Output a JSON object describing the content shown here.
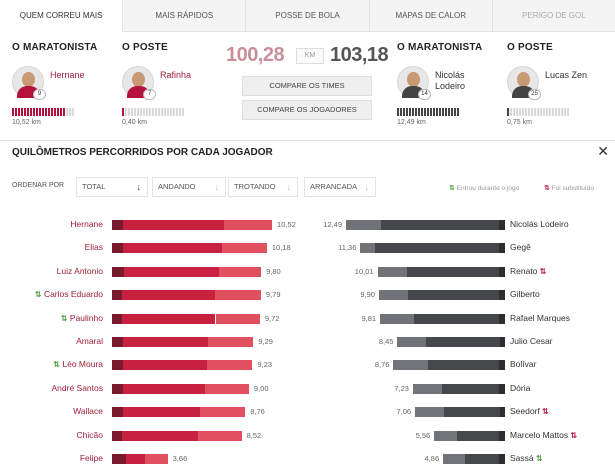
{
  "tabs": [
    {
      "label": "QUEM CORREU MAIS",
      "state": "active"
    },
    {
      "label": "MAIS RÁPIDOS",
      "state": "normal"
    },
    {
      "label": "POSSE DE BOLA",
      "state": "normal"
    },
    {
      "label": "MAPAS DE CALOR",
      "state": "normal"
    },
    {
      "label": "PERIGO DE GOL",
      "state": "disabled"
    }
  ],
  "header": {
    "left": [
      {
        "title": "O MARATONISTA",
        "name": [
          "Hernane"
        ],
        "number": "9",
        "km": "10,52 km",
        "fill": 0.88,
        "shirt": "#b4123b",
        "team": "red"
      },
      {
        "title": "O POSTE",
        "name": [
          "Rafinha"
        ],
        "number": "7",
        "km": "0,40 km",
        "fill": 0.04,
        "shirt": "#b4123b",
        "team": "red"
      }
    ],
    "right": [
      {
        "title": "O MARATONISTA",
        "name": [
          "Nicolás",
          "Lodeiro"
        ],
        "number": "14",
        "km": "12,49 km",
        "fill": 1.0,
        "shirt": "#444444",
        "team": "dark"
      },
      {
        "title": "O POSTE",
        "name": [
          "Lucas Zen"
        ],
        "number": "25",
        "km": "0,75 km",
        "fill": 0.06,
        "shirt": "#444444",
        "team": "dark"
      }
    ],
    "total_left": "100,28",
    "total_right": "103,18",
    "unit": "KM",
    "compare_teams": "COMPARE OS TIMES",
    "compare_players": "COMPARE OS JOGADORES"
  },
  "section": {
    "title": "QUILÔMETROS PERCORRIDOS POR CADA JOGADOR",
    "close": "✕"
  },
  "sort": {
    "label": "ORDENAR POR",
    "options": [
      {
        "label": "TOTAL",
        "active": true
      },
      {
        "label": "ANDANDO",
        "active": false
      },
      {
        "label": "TROTANDO",
        "active": false
      },
      {
        "label": "ARRANCADA",
        "active": false
      }
    ],
    "legend_in": "Entrou durante o jogo",
    "legend_out": "Foi substituído",
    "icon_swap": "⇅"
  },
  "colors": {
    "left": [
      "#7a1a2e",
      "#c8203f",
      "#e0505f"
    ],
    "right": [
      "#2e2e2e",
      "#46474b",
      "#727378"
    ]
  },
  "chart_data": {
    "type": "bar",
    "scale_max": 12.49,
    "left": [
      {
        "name": "Hernane",
        "value": 10.52,
        "label": "10,52",
        "sub": "",
        "split": [
          0.07,
          0.63,
          0.3
        ]
      },
      {
        "name": "Elias",
        "value": 10.18,
        "label": "10,18",
        "sub": "",
        "split": [
          0.07,
          0.64,
          0.29
        ]
      },
      {
        "name": "Luiz Antonio",
        "value": 9.8,
        "label": "9,80",
        "sub": "",
        "split": [
          0.08,
          0.64,
          0.28
        ]
      },
      {
        "name": "Carlos Eduardo",
        "value": 9.79,
        "label": "9,79",
        "sub": "in",
        "split": [
          0.07,
          0.62,
          0.31
        ]
      },
      {
        "name": "Paulinho",
        "value": 9.72,
        "label": "9,72",
        "sub": "in",
        "split": [
          0.07,
          0.63,
          0.3
        ]
      },
      {
        "name": "Amaral",
        "value": 9.29,
        "label": "9,29",
        "sub": "",
        "split": [
          0.08,
          0.6,
          0.32
        ]
      },
      {
        "name": "Léo Moura",
        "value": 9.23,
        "label": "9,23",
        "sub": "in",
        "split": [
          0.08,
          0.6,
          0.32
        ]
      },
      {
        "name": "André Santos",
        "value": 9.0,
        "label": "9,00",
        "sub": "",
        "split": [
          0.08,
          0.6,
          0.32
        ]
      },
      {
        "name": "Wallace",
        "value": 8.76,
        "label": "8,76",
        "sub": "",
        "split": [
          0.08,
          0.58,
          0.34
        ]
      },
      {
        "name": "Chicão",
        "value": 8.52,
        "label": "8,52",
        "sub": "",
        "split": [
          0.08,
          0.58,
          0.34
        ]
      },
      {
        "name": "Felipe",
        "value": 3.66,
        "label": "3,66",
        "sub": "",
        "split": [
          0.25,
          0.35,
          0.4
        ]
      }
    ],
    "right": [
      {
        "name": "Nicolás Lodeiro",
        "value": 12.49,
        "label": "12,49",
        "sub": "",
        "split": [
          0.04,
          0.74,
          0.22
        ]
      },
      {
        "name": "Gegê",
        "value": 11.36,
        "label": "11,36",
        "sub": "",
        "split": [
          0.04,
          0.86,
          0.1
        ]
      },
      {
        "name": "Renato",
        "value": 10.01,
        "label": "10,01",
        "sub": "out",
        "split": [
          0.05,
          0.72,
          0.23
        ]
      },
      {
        "name": "Gilberto",
        "value": 9.9,
        "label": "9,90",
        "sub": "",
        "split": [
          0.05,
          0.72,
          0.23
        ]
      },
      {
        "name": "Rafael Marques",
        "value": 9.81,
        "label": "9,81",
        "sub": "",
        "split": [
          0.05,
          0.68,
          0.27
        ]
      },
      {
        "name": "Julio Cesar",
        "value": 8.45,
        "label": "8,45",
        "sub": "",
        "split": [
          0.05,
          0.68,
          0.27
        ]
      },
      {
        "name": "Bolívar",
        "value": 8.76,
        "label": "8,76",
        "sub": "",
        "split": [
          0.05,
          0.64,
          0.31
        ]
      },
      {
        "name": "Dória",
        "value": 7.23,
        "label": "7,23",
        "sub": "",
        "split": [
          0.06,
          0.62,
          0.32
        ]
      },
      {
        "name": "Seedorf",
        "value": 7.06,
        "label": "7,06",
        "sub": "out",
        "split": [
          0.06,
          0.62,
          0.32
        ]
      },
      {
        "name": "Marcelo Mattos",
        "value": 5.56,
        "label": "5,56",
        "sub": "out",
        "split": [
          0.08,
          0.6,
          0.32
        ]
      },
      {
        "name": "Sassá",
        "value": 4.86,
        "label": "4,86",
        "sub": "in",
        "split": [
          0.1,
          0.55,
          0.35
        ]
      }
    ]
  }
}
